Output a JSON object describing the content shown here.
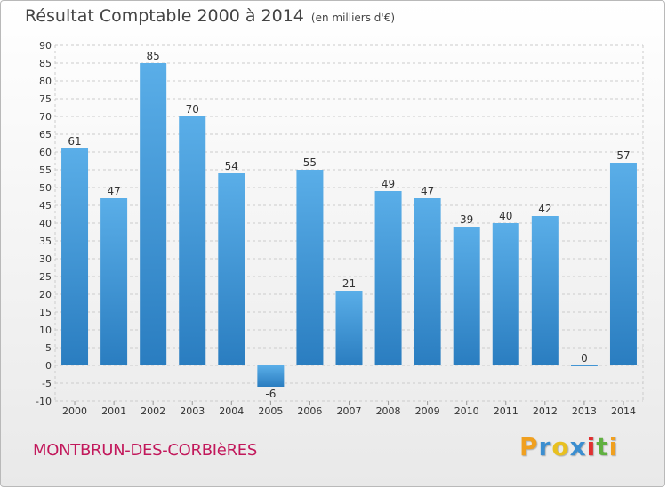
{
  "chart_data": {
    "type": "bar",
    "title": "Résultat Comptable 2000 à 2014",
    "subtitle": "(en milliers d'€)",
    "categories": [
      "2000",
      "2001",
      "2002",
      "2003",
      "2004",
      "2005",
      "2006",
      "2007",
      "2008",
      "2009",
      "2010",
      "2011",
      "2012",
      "2013",
      "2014"
    ],
    "values": [
      61,
      47,
      85,
      70,
      54,
      -6,
      55,
      21,
      49,
      47,
      39,
      40,
      42,
      0,
      57
    ],
    "data_labels": [
      "61",
      "47",
      "85",
      "70",
      "54",
      "-6",
      "55",
      "21",
      "49",
      "47",
      "39",
      "40",
      "42",
      "0",
      "57"
    ],
    "ylim": [
      -10,
      90
    ],
    "yticks": [
      -10,
      -5,
      0,
      5,
      10,
      15,
      20,
      25,
      30,
      35,
      40,
      45,
      50,
      55,
      60,
      65,
      70,
      75,
      80,
      85,
      90
    ],
    "grid": true,
    "xlabel": "",
    "ylabel": "",
    "colors": {
      "bar_top": "#5aaee8",
      "bar_bottom": "#2a7dc0",
      "grid": "#cccccc",
      "axis_text": "#333333"
    }
  },
  "footer": {
    "commune": "MONTBRUN-DES-CORBIèRES",
    "logo": [
      "P",
      "r",
      "o",
      "x",
      "i",
      "t",
      "i"
    ],
    "logo_colors": [
      "#f0a020",
      "#3b8ed0",
      "#e8c020",
      "#3b8ed0",
      "#e03030",
      "#60b040",
      "#f0a020"
    ]
  }
}
